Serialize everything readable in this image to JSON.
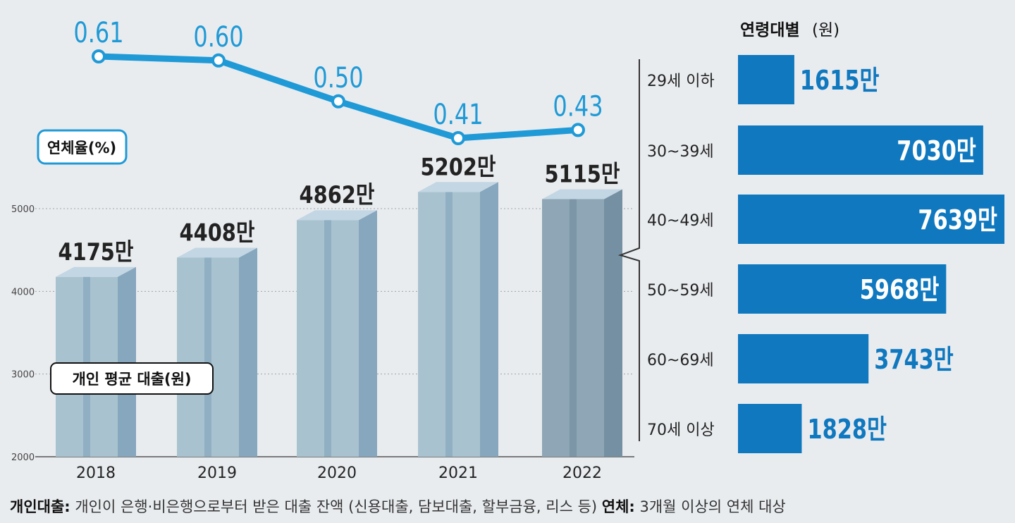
{
  "chart_data": [
    {
      "type": "bar",
      "title": "개인 평균 대출(원)",
      "categories": [
        "2018",
        "2019",
        "2020",
        "2021",
        "2022"
      ],
      "values": [
        4175,
        4408,
        4862,
        5202,
        5115
      ],
      "value_labels": [
        "4175만",
        "4408만",
        "4862만",
        "5202만",
        "5115만"
      ],
      "yticks": [
        "5000",
        "4000",
        "3000",
        "2000"
      ],
      "ylim": [
        2000,
        5000
      ],
      "colors": {
        "bar": "#a8c3cf",
        "bar_side": "#86a7bd",
        "bar_top": "#c3d6e3",
        "highlight": "#8ea6b5",
        "highlight_side": "#7590a3"
      }
    },
    {
      "type": "line",
      "title": "연체율(%)",
      "categories": [
        "2018",
        "2019",
        "2020",
        "2021",
        "2022"
      ],
      "values": [
        0.61,
        0.6,
        0.5,
        0.41,
        0.43
      ],
      "value_labels": [
        "0.61",
        "0.60",
        "0.50",
        "0.41",
        "0.43"
      ],
      "color": "#1f9ad6"
    },
    {
      "type": "bar",
      "orientation": "horizontal",
      "title": "연령대별",
      "unit": "(원)",
      "categories": [
        "29세 이하",
        "30~39세",
        "40~49세",
        "50~59세",
        "60~69세",
        "70세 이상"
      ],
      "values": [
        1615,
        7030,
        7639,
        5968,
        3743,
        1828
      ],
      "value_labels": [
        "1615만",
        "7030만",
        "7639만",
        "5968만",
        "3743만",
        "1828만"
      ],
      "color": "#0f78bf"
    }
  ],
  "footnote": {
    "loan_term": "개인대출:",
    "loan_desc": " 개인이 은행·비은행으로부터 받은 대출 잔액 (신용대출, 담보대출, 할부금융, 리스 등) ",
    "overdue_term": "연체:",
    "overdue_desc": " 3개월 이상의 연체 대상"
  }
}
